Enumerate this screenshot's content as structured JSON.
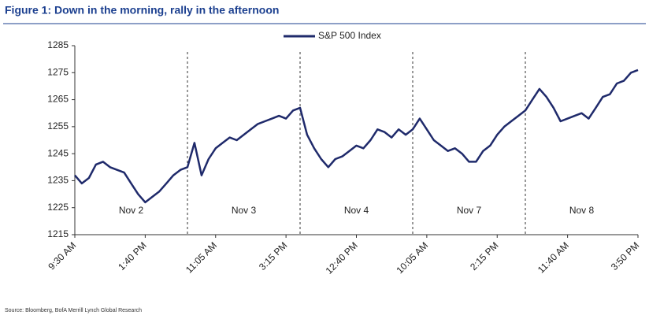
{
  "chart_data": {
    "type": "line",
    "title": "Figure 1: Down in the morning, rally in the afternoon",
    "source": "Source: Bloomberg, BofA Merrill Lynch Global Research",
    "annotations": [
      "Nov 2",
      "Nov 3",
      "Nov 4",
      "Nov 7",
      "Nov 8"
    ],
    "categories": [
      "9:30 AM",
      null,
      null,
      null,
      null,
      null,
      null,
      null,
      null,
      null,
      "1:40 PM",
      null,
      null,
      null,
      null,
      null,
      null,
      null,
      null,
      null,
      "11:05 AM",
      null,
      null,
      null,
      null,
      null,
      null,
      null,
      null,
      null,
      "3:15 PM",
      null,
      null,
      null,
      null,
      null,
      null,
      null,
      null,
      null,
      "12:40 PM",
      null,
      null,
      null,
      null,
      null,
      null,
      null,
      null,
      null,
      "10:05 AM",
      null,
      null,
      null,
      null,
      null,
      null,
      null,
      null,
      null,
      "2:15 PM",
      null,
      null,
      null,
      null,
      null,
      null,
      null,
      null,
      null,
      "11:40 AM",
      null,
      null,
      null,
      null,
      null,
      null,
      null,
      null,
      null,
      "3:50 PM"
    ],
    "series": [
      {
        "name": "S&P 500 Index",
        "color": "#1f2a6b",
        "values": [
          1237,
          1234,
          1236,
          1241,
          1242,
          1240,
          1239,
          1238,
          1234,
          1230,
          1227,
          1229,
          1231,
          1234,
          1237,
          1239,
          1240,
          1249,
          1237,
          1243,
          1247,
          1249,
          1251,
          1250,
          1252,
          1254,
          1256,
          1257,
          1258,
          1259,
          1258,
          1261,
          1262,
          1252,
          1247,
          1243,
          1240,
          1243,
          1244,
          1246,
          1248,
          1247,
          1250,
          1254,
          1253,
          1251,
          1254,
          1252,
          1254,
          1258,
          1254,
          1250,
          1248,
          1246,
          1247,
          1245,
          1242,
          1242,
          1246,
          1248,
          1252,
          1255,
          1257,
          1259,
          1261,
          1265,
          1269,
          1266,
          1262,
          1257,
          1258,
          1259,
          1260,
          1258,
          1262,
          1266,
          1267,
          1271,
          1272,
          1275,
          1276
        ]
      }
    ],
    "ylim": [
      1215,
      1285
    ],
    "yticks": [
      1215,
      1225,
      1235,
      1245,
      1255,
      1265,
      1275,
      1285
    ],
    "legend": "top"
  }
}
